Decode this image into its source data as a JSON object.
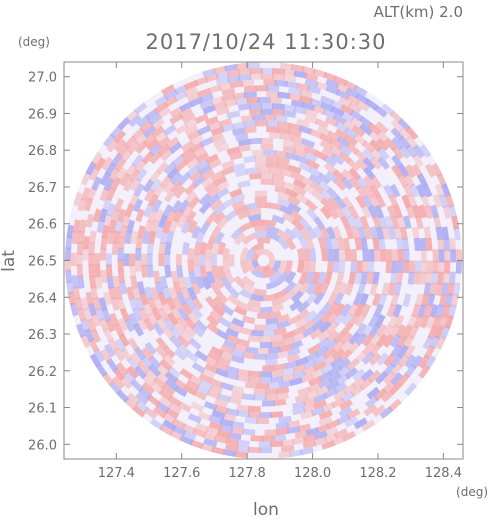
{
  "header": {
    "altitude_label": "ALT(km)  2.0",
    "timestamp": "2017/10/24 11:30:30",
    "lat_unit": "(deg)",
    "lon_unit": "(deg)"
  },
  "chart_data": {
    "type": "heatmap",
    "title": "2017/10/24 11:30:30",
    "subtitle": "ALT(km)  2.0",
    "xlabel": "lon",
    "ylabel": "lat",
    "x_unit": "(deg)",
    "y_unit": "(deg)",
    "xlim": [
      127.24,
      128.46
    ],
    "ylim": [
      25.96,
      27.04
    ],
    "x_ticks": [
      "127.4",
      "127.6",
      "127.8",
      "128.0",
      "128.2",
      "128.4"
    ],
    "x_tick_values": [
      127.4,
      127.6,
      127.8,
      128.0,
      128.2,
      128.4
    ],
    "y_ticks": [
      "26.0",
      "26.1",
      "26.2",
      "26.3",
      "26.4",
      "26.5",
      "26.6",
      "26.7",
      "26.8",
      "26.9",
      "27.0"
    ],
    "y_tick_values": [
      26.0,
      26.1,
      26.2,
      26.3,
      26.4,
      26.5,
      26.6,
      26.7,
      26.8,
      26.9,
      27.0
    ],
    "field_center": [
      127.85,
      26.5
    ],
    "field_radius_deg_lat": 0.54,
    "colors": {
      "positive": "#f4a6a6",
      "negative": "#a9a9f2",
      "neutral": "#f3f0fb",
      "axis": "#888888"
    }
  }
}
